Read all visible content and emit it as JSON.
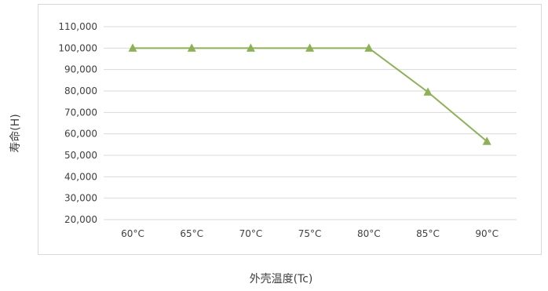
{
  "chart_data": {
    "type": "line",
    "categories": [
      "60°C",
      "65°C",
      "70°C",
      "75°C",
      "80°C",
      "85°C",
      "90°C"
    ],
    "series": [
      {
        "values": [
          100000,
          100000,
          100000,
          100000,
          100000,
          79500,
          56500
        ],
        "color": "#8db255",
        "marker": "triangle"
      }
    ],
    "y_ticks": [
      "20,000",
      "30,000",
      "40,000",
      "50,000",
      "60,000",
      "70,000",
      "80,000",
      "90,000",
      "100,000",
      "110,000"
    ],
    "ylim": [
      20000,
      110000
    ],
    "xlabel": "外壳温度(Tc)",
    "ylabel": "寿命(H)",
    "grid": true,
    "gridline_color": "#d9d9d9",
    "legend": "none"
  }
}
